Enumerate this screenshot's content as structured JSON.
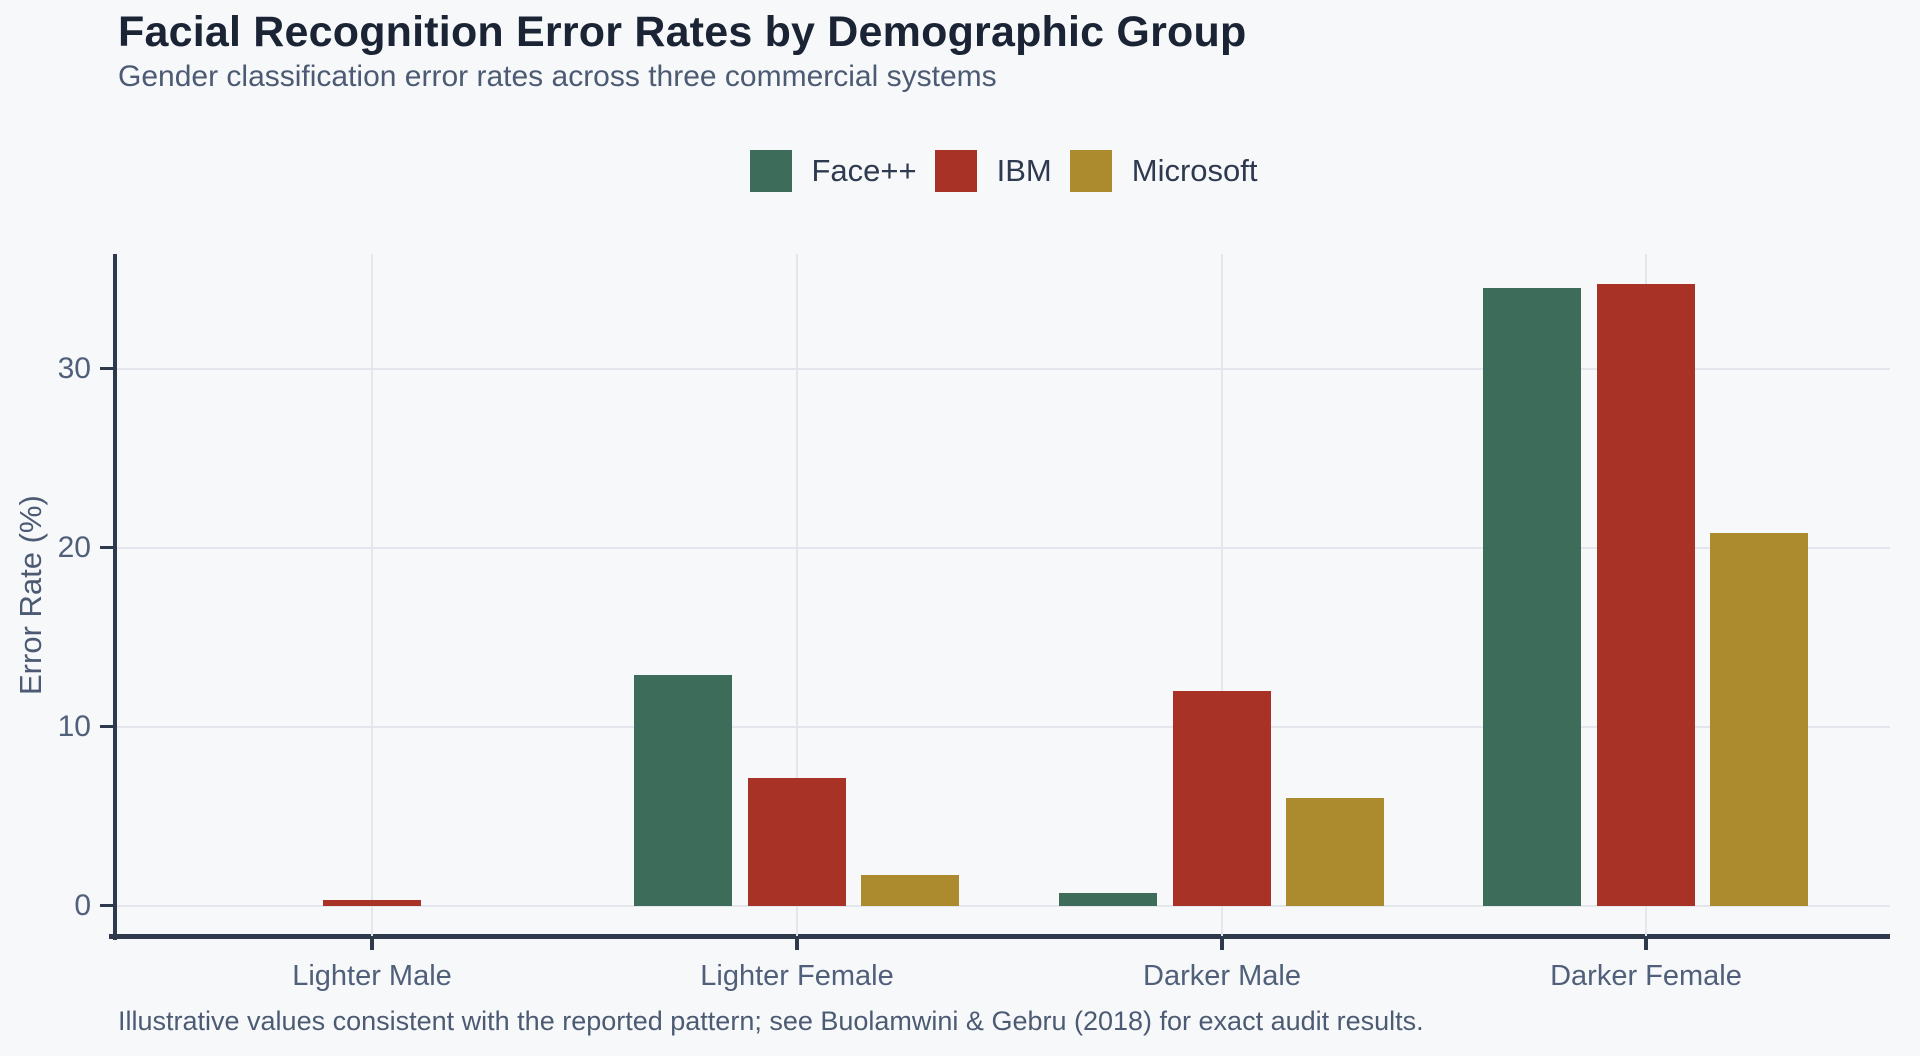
{
  "page": {
    "background_color": "#f7f8fa",
    "title_color": "#1b2435",
    "text_color": "#4c5b73",
    "axis_color": "#2e3a4c",
    "gridline_color": "#e3e7ed"
  },
  "chart_data": {
    "type": "bar",
    "title": "Facial Recognition Error Rates by Demographic Group",
    "subtitle": "Gender classification error rates across three commercial systems",
    "xlabel": "",
    "ylabel": "Error Rate (%)",
    "categories": [
      "Lighter Male",
      "Lighter Female",
      "Darker Male",
      "Darker Female"
    ],
    "series": [
      {
        "name": "Face++",
        "color": "#3d6c5b",
        "values": [
          0.0,
          12.9,
          0.7,
          34.5
        ]
      },
      {
        "name": "IBM",
        "color": "#a93226",
        "values": [
          0.3,
          7.1,
          12.0,
          34.7
        ]
      },
      {
        "name": "Microsoft",
        "color": "#ab8b2d",
        "values": [
          0.0,
          1.7,
          6.0,
          20.8
        ]
      }
    ],
    "yticks": [
      0,
      10,
      20,
      30
    ],
    "ylim": [
      -1.7,
      36.4
    ],
    "grid": true,
    "legend_position": "top-center"
  },
  "footer": {
    "text": "Illustrative values consistent with the reported pattern; see Buolamwini & Gebru (2018) for exact audit results."
  }
}
